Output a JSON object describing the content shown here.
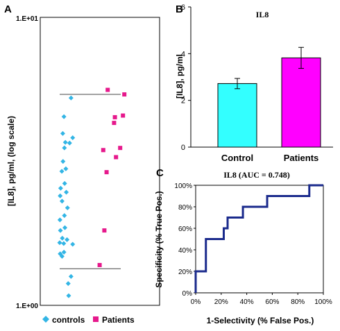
{
  "chart_data": [
    {
      "panel_label": "A",
      "type": "scatter",
      "ylabel": "[IL8], pg/ml, (log scale)",
      "yscale": "log",
      "ylim": [
        1.0,
        10.0
      ],
      "y_tick_labels": [
        "1.E+01",
        "1.E+00"
      ],
      "legend": [
        "controls",
        "Patients"
      ],
      "legend_position": "bottom",
      "series": [
        {
          "name": "controls",
          "color": "#33b5e5",
          "marker": "diamond",
          "points": [
            [
              5.4,
              5.25
            ],
            [
              2.4,
              4.52
            ],
            [
              1.9,
              3.95
            ],
            [
              6.1,
              3.82
            ],
            [
              3.0,
              3.68
            ],
            [
              4.8,
              3.66
            ],
            [
              2.6,
              3.52
            ],
            [
              2.0,
              3.16
            ],
            [
              3.2,
              2.98
            ],
            [
              1.5,
              2.92
            ],
            [
              2.7,
              2.65
            ],
            [
              1.0,
              2.55
            ],
            [
              3.4,
              2.47
            ],
            [
              0.8,
              2.4
            ],
            [
              1.6,
              2.3
            ],
            [
              3.9,
              2.18
            ],
            [
              2.6,
              2.05
            ],
            [
              0.7,
              1.98
            ],
            [
              2.8,
              1.86
            ],
            [
              0.9,
              1.82
            ],
            [
              1.7,
              1.71
            ],
            [
              3.7,
              1.69
            ],
            [
              0.6,
              1.65
            ],
            [
              2.3,
              1.64
            ],
            [
              6.1,
              1.63
            ],
            [
              2.4,
              1.53
            ],
            [
              0.8,
              1.51
            ],
            [
              1.6,
              1.48
            ],
            [
              5.4,
              1.26
            ],
            [
              4.2,
              1.19
            ],
            [
              4.4,
              1.08
            ]
          ],
          "lines": [
            5.4,
            1.34
          ]
        },
        {
          "name": "Patients",
          "color": "#e6198c",
          "marker": "square",
          "points": [
            [
              3.8,
              5.6
            ],
            [
              9.8,
              5.4
            ],
            [
              6.4,
              4.5
            ],
            [
              9.3,
              4.56
            ],
            [
              6.1,
              4.3
            ],
            [
              8.3,
              3.52
            ],
            [
              2.2,
              3.46
            ],
            [
              6.8,
              3.27
            ],
            [
              3.4,
              2.9
            ],
            [
              2.6,
              1.82
            ],
            [
              0.9,
              1.38
            ]
          ]
        }
      ]
    },
    {
      "panel_label": "B",
      "type": "bar",
      "title": "IL8",
      "ylabel": "[IL8], pg/ml",
      "ylim": [
        0,
        6
      ],
      "y_ticks": [
        0,
        2,
        4,
        6
      ],
      "categories": [
        "Control",
        "Patients"
      ],
      "values": [
        2.72,
        3.82
      ],
      "errors": [
        0.22,
        0.45
      ],
      "colors": [
        "#33ffff",
        "#ff00ff"
      ]
    },
    {
      "panel_label": "C",
      "type": "line",
      "title": "IL8 (AUC = 0.748)",
      "xlabel": "1-Selectivity (% False Pos.)",
      "ylabel": "Specificity (% True Pos.)",
      "xlim": [
        0,
        100
      ],
      "ylim": [
        0,
        100
      ],
      "x_ticks": [
        "0%",
        "20%",
        "40%",
        "60%",
        "80%",
        "100%"
      ],
      "y_ticks": [
        "0%",
        "20%",
        "40%",
        "60%",
        "80%",
        "100%"
      ],
      "color": "#1a2a8c",
      "points": [
        [
          0,
          0
        ],
        [
          0,
          20
        ],
        [
          8,
          20
        ],
        [
          8,
          50
        ],
        [
          22,
          50
        ],
        [
          22,
          60
        ],
        [
          25,
          60
        ],
        [
          25,
          70
        ],
        [
          37,
          70
        ],
        [
          37,
          80
        ],
        [
          56,
          80
        ],
        [
          56,
          90
        ],
        [
          89,
          90
        ],
        [
          89,
          100
        ],
        [
          100,
          100
        ]
      ]
    }
  ]
}
